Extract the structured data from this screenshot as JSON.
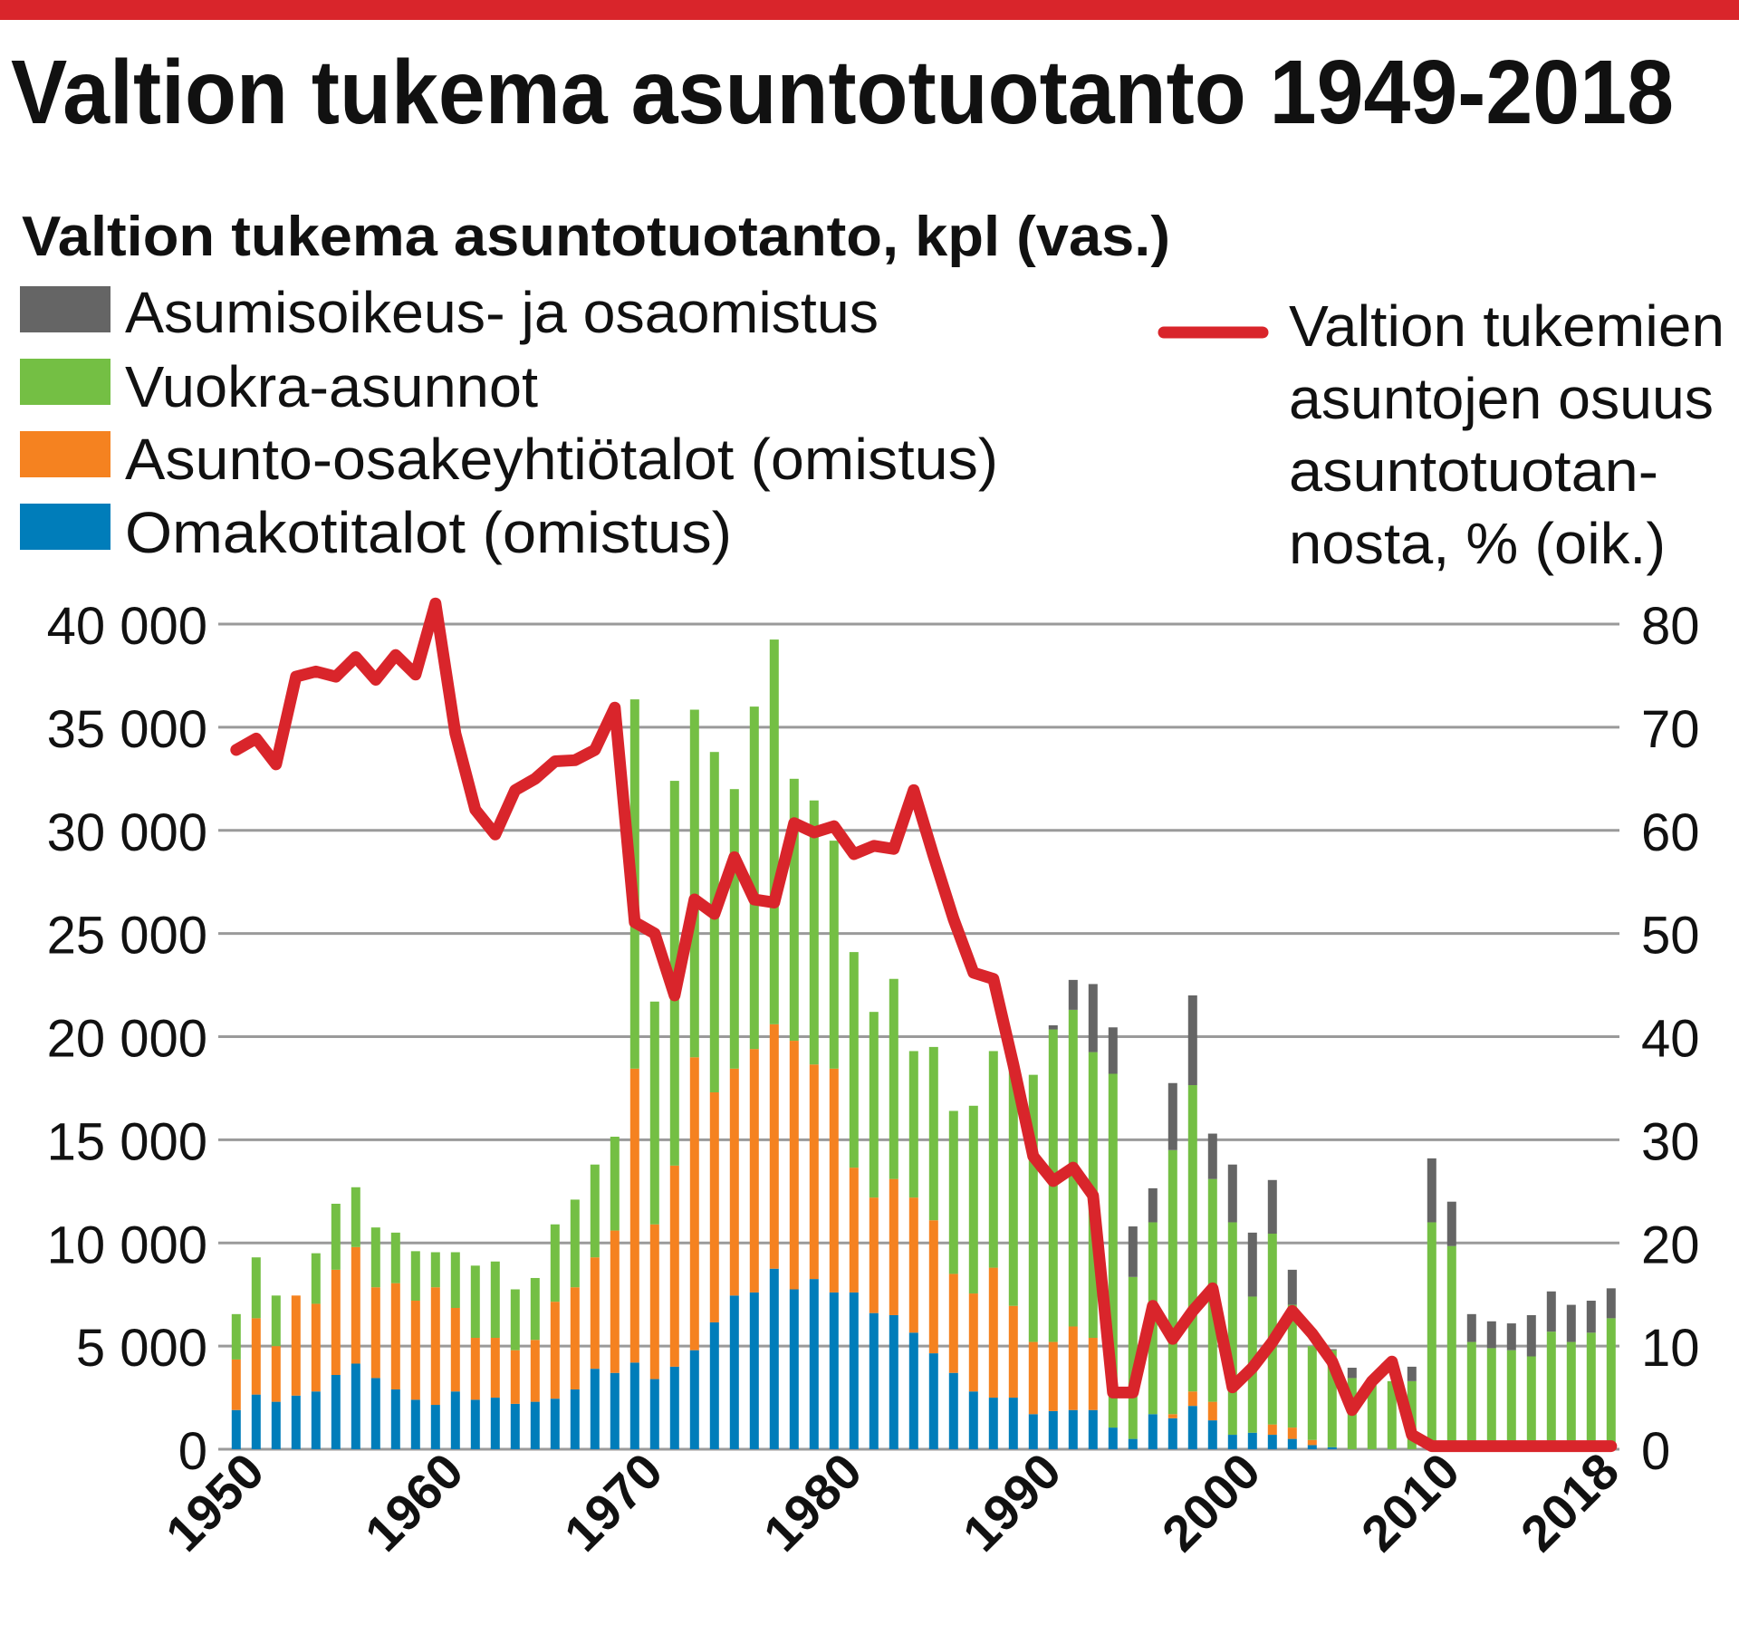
{
  "title": "Valtion tukema asuntotuotanto 1949-2018",
  "colors": {
    "top_rule": "#d9252b",
    "asumisoikeus": "#656565",
    "vuokra": "#74bf44",
    "aoy": "#f58220",
    "omakoti": "#007dba",
    "share_line": "#d9252b",
    "grid": "#9a9a9a"
  },
  "chart_data": {
    "type": "bar",
    "stacked": true,
    "subtitle": "Valtion tukema asuntotuotanto, kpl (vas.)",
    "legend": {
      "left": [
        "Asumisoikeus- ja osaomistus",
        "Vuokra-asunnot",
        "Asunto-osakeyhtiötalot (omistus)",
        "Omakotitalot (omistus)"
      ],
      "right_lines": [
        "Valtion tukemien",
        "asuntojen osuus",
        "asuntotuotan-",
        "nosta, % (oik.)"
      ]
    },
    "x_years": [
      1949,
      1950,
      1951,
      1952,
      1953,
      1954,
      1955,
      1956,
      1957,
      1958,
      1959,
      1960,
      1961,
      1962,
      1963,
      1964,
      1965,
      1966,
      1967,
      1968,
      1969,
      1970,
      1971,
      1972,
      1973,
      1974,
      1975,
      1976,
      1977,
      1978,
      1979,
      1980,
      1981,
      1982,
      1983,
      1984,
      1985,
      1986,
      1987,
      1988,
      1989,
      1990,
      1991,
      1992,
      1993,
      1994,
      1995,
      1996,
      1997,
      1998,
      1999,
      2000,
      2001,
      2002,
      2003,
      2004,
      2005,
      2006,
      2007,
      2008,
      2009,
      2010,
      2011,
      2012,
      2013,
      2014,
      2015,
      2016,
      2017,
      2018
    ],
    "x_tick_labels": [
      "1950",
      "1960",
      "1970",
      "1980",
      "1990",
      "2000",
      "2010",
      "2018"
    ],
    "x_tick_years": [
      1950,
      1960,
      1970,
      1980,
      1990,
      2000,
      2010,
      2018
    ],
    "y_left": {
      "lim": [
        0,
        40000
      ],
      "ticks": [
        0,
        5000,
        10000,
        15000,
        20000,
        25000,
        30000,
        35000,
        40000
      ],
      "tick_labels": [
        "0",
        "5 000",
        "10 000",
        "15 000",
        "20 000",
        "25 000",
        "30 000",
        "35 000",
        "40 000"
      ]
    },
    "y_right": {
      "lim": [
        0,
        80
      ],
      "ticks": [
        0,
        10,
        20,
        30,
        40,
        50,
        60,
        70,
        80
      ],
      "tick_labels": [
        "0",
        "10",
        "20",
        "30",
        "40",
        "50",
        "60",
        "70",
        "80"
      ]
    },
    "grid": true,
    "series": [
      {
        "name": "Omakotitalot (omistus)",
        "key": "omakoti",
        "values": [
          1900,
          2650,
          2300,
          2600,
          2800,
          3600,
          4150,
          3450,
          2900,
          2400,
          2150,
          2800,
          2400,
          2500,
          2200,
          2300,
          2450,
          2900,
          3900,
          3700,
          4200,
          3400,
          4000,
          4800,
          6150,
          7450,
          7600,
          8750,
          7750,
          8250,
          7600,
          7600,
          6600,
          6500,
          5650,
          4650,
          3700,
          2800,
          2500,
          2500,
          1700,
          1850,
          1900,
          1900,
          1050,
          500,
          1700,
          1500,
          2100,
          1400,
          700,
          800,
          700,
          500,
          200,
          100,
          0,
          0,
          0,
          0,
          0,
          0,
          0,
          0,
          0,
          0,
          0,
          0,
          0,
          0
        ]
      },
      {
        "name": "Asunto-osakeyhtiötalot (omistus)",
        "key": "aoy",
        "values": [
          2450,
          3700,
          2700,
          4850,
          4250,
          5100,
          5650,
          4400,
          5150,
          4800,
          5700,
          4050,
          3000,
          2900,
          2600,
          3000,
          4700,
          4950,
          5400,
          6900,
          14250,
          7500,
          9750,
          14200,
          11150,
          11000,
          11800,
          11850,
          12050,
          10400,
          10850,
          6050,
          5600,
          6600,
          6550,
          6450,
          4800,
          4750,
          6300,
          4450,
          3500,
          3350,
          4050,
          3500,
          0,
          0,
          0,
          200,
          700,
          900,
          0,
          0,
          500,
          550,
          250,
          0,
          0,
          0,
          0,
          0,
          0,
          0,
          0,
          0,
          0,
          0,
          0,
          0,
          0,
          0
        ]
      },
      {
        "name": "Vuokra-asunnot",
        "key": "vuokra",
        "values": [
          2200,
          2950,
          2450,
          0,
          2450,
          3200,
          2900,
          2900,
          2450,
          2400,
          1700,
          2700,
          3500,
          3700,
          2950,
          3000,
          3750,
          4250,
          4500,
          4550,
          17900,
          10800,
          18650,
          16850,
          16500,
          13550,
          16600,
          18650,
          12700,
          12800,
          11050,
          10450,
          9000,
          9700,
          7100,
          8400,
          7900,
          9100,
          10500,
          11500,
          12950,
          15150,
          15350,
          13850,
          17150,
          7850,
          9300,
          12800,
          14850,
          10800,
          10300,
          6600,
          9250,
          5950,
          4550,
          4700,
          3450,
          3450,
          3300,
          3300,
          11000,
          9850,
          5200,
          4900,
          4800,
          4500,
          5700,
          5200,
          5650,
          6350
        ]
      },
      {
        "name": "Asumisoikeus- ja osaomistus",
        "key": "asumisoikeus",
        "values": [
          0,
          0,
          0,
          0,
          0,
          0,
          0,
          0,
          0,
          0,
          0,
          0,
          0,
          0,
          0,
          0,
          0,
          0,
          0,
          0,
          0,
          0,
          0,
          0,
          0,
          0,
          0,
          0,
          0,
          0,
          0,
          0,
          0,
          0,
          0,
          0,
          0,
          0,
          0,
          0,
          0,
          200,
          1450,
          3300,
          2250,
          2450,
          1650,
          3250,
          4350,
          2200,
          2800,
          3100,
          2600,
          1700,
          0,
          50,
          500,
          0,
          0,
          700,
          3100,
          2150,
          1350,
          1300,
          1300,
          2000,
          1950,
          1800,
          1550,
          1450
        ]
      }
    ],
    "line": {
      "name": "Valtion tukemien asuntojen osuus asuntotuotannosta, %",
      "axis": "right",
      "values": [
        67.8,
        68.9,
        66.4,
        74.9,
        75.4,
        74.9,
        76.8,
        74.6,
        77.0,
        75.1,
        82.0,
        69.4,
        62.0,
        59.6,
        63.9,
        65.0,
        66.7,
        66.8,
        67.8,
        71.9,
        51.1,
        50.0,
        44.0,
        53.3,
        51.9,
        57.4,
        53.3,
        53.0,
        60.7,
        59.8,
        60.4,
        57.7,
        58.5,
        58.2,
        63.9,
        57.5,
        51.4,
        46.2,
        45.6,
        37.3,
        28.4,
        26.0,
        27.3,
        24.6,
        5.5,
        5.5,
        13.9,
        10.7,
        13.4,
        15.6,
        6.0,
        7.9,
        10.4,
        13.4,
        11.2,
        8.5,
        3.8,
        6.6,
        8.5,
        1.4,
        0.3,
        0.3,
        0.3,
        0.3,
        0.3,
        0.3,
        0.3,
        0.3,
        0.3,
        0.3
      ]
    }
  }
}
